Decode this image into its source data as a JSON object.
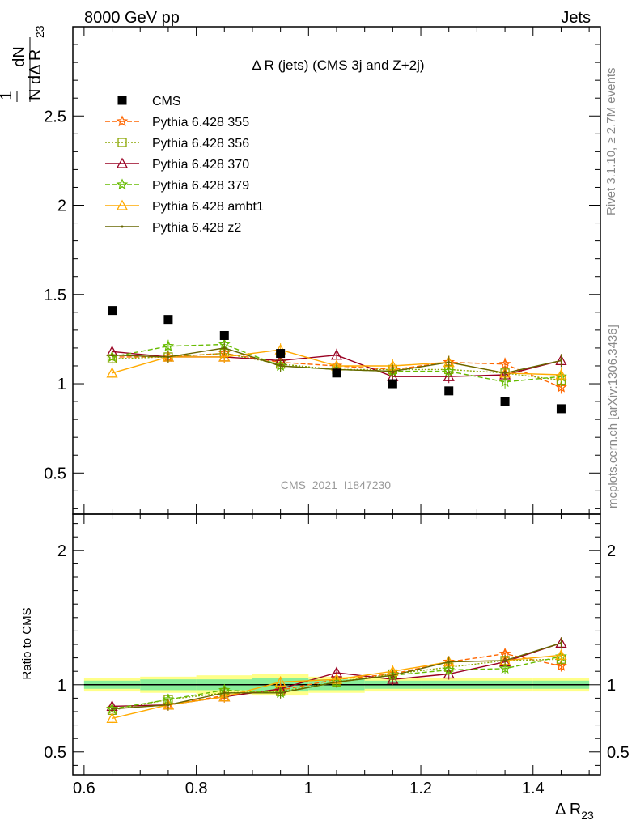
{
  "header": {
    "left": "8000 GeV pp",
    "right": "Jets",
    "title": "Δ R (jets) (CMS 3j and Z+2j)",
    "watermark": "CMS_2021_I1847230",
    "side_top": "Rivet 3.1.10, ≥ 2.7M events",
    "side_bottom": "mcplots.cern.ch [arXiv:1306.3436]"
  },
  "axes": {
    "ylabel_top_num": "1",
    "ylabel_top_dn": "dN",
    "ylabel_top_den": "N dΔ R",
    "ylabel_top_sub": "23",
    "ylabel_bottom": "Ratio to CMS",
    "xlabel": "Δ R",
    "xlabel_sub": "23"
  },
  "chart_data": [
    {
      "type": "line",
      "panel": "main",
      "title": "Δ R (jets) (CMS 3j and Z+2j)",
      "xlim": [
        0.58,
        1.52
      ],
      "ylim": [
        0.27,
        3.0
      ],
      "x_ticks": [
        "0.6",
        "0.8",
        "1",
        "1.2",
        "1.4"
      ],
      "y_ticks": [
        "0.5",
        "1",
        "1.5",
        "2",
        "2.5"
      ],
      "x": [
        0.65,
        0.75,
        0.85,
        0.95,
        1.05,
        1.15,
        1.25,
        1.35,
        1.45
      ],
      "data": {
        "name": "CMS",
        "color": "#000000",
        "values": [
          1.41,
          1.36,
          1.27,
          1.17,
          1.06,
          1.0,
          0.96,
          0.9,
          0.86
        ]
      },
      "series": [
        {
          "name": "Pythia 6.428 355",
          "color": "#ff6600",
          "dash": "6,3",
          "marker": "star",
          "values": [
            1.15,
            1.15,
            1.17,
            1.12,
            1.1,
            1.08,
            1.12,
            1.11,
            0.98
          ]
        },
        {
          "name": "Pythia 6.428 356",
          "color": "#8aa600",
          "dash": "2,2",
          "marker": "square",
          "values": [
            1.14,
            1.15,
            1.17,
            1.11,
            1.08,
            1.08,
            1.08,
            1.06,
            1.02
          ]
        },
        {
          "name": "Pythia 6.428 370",
          "color": "#990022",
          "dash": "",
          "marker": "triangle",
          "values": [
            1.18,
            1.15,
            1.15,
            1.13,
            1.16,
            1.04,
            1.04,
            1.05,
            1.13
          ]
        },
        {
          "name": "Pythia 6.428 379",
          "color": "#66bb00",
          "dash": "6,3",
          "marker": "star",
          "values": [
            1.15,
            1.21,
            1.22,
            1.1,
            1.08,
            1.07,
            1.07,
            1.01,
            1.04
          ]
        },
        {
          "name": "Pythia 6.428 ambt1",
          "color": "#ffaa00",
          "dash": "",
          "marker": "triangle",
          "values": [
            1.06,
            1.15,
            1.15,
            1.19,
            1.1,
            1.1,
            1.12,
            1.06,
            1.05
          ]
        },
        {
          "name": "Pythia 6.428 z2",
          "color": "#666600",
          "dash": "",
          "marker": "dot",
          "values": [
            1.16,
            1.15,
            1.2,
            1.1,
            1.08,
            1.07,
            1.12,
            1.06,
            1.13
          ]
        }
      ]
    },
    {
      "type": "line",
      "panel": "ratio",
      "ylabel": "Ratio to CMS",
      "xlim": [
        0.58,
        1.52
      ],
      "ylim": [
        0.33,
        2.27
      ],
      "y_ticks": [
        "0.5",
        "1",
        "2"
      ],
      "x": [
        0.65,
        0.75,
        0.85,
        0.95,
        1.05,
        1.15,
        1.25,
        1.35,
        1.45
      ],
      "band_inner": [
        0.03,
        0.04,
        0.04,
        0.05,
        0.04,
        0.03,
        0.03,
        0.03,
        0.03
      ],
      "band_outer": [
        0.05,
        0.06,
        0.07,
        0.08,
        0.06,
        0.05,
        0.05,
        0.05,
        0.05
      ],
      "series": [
        {
          "name": "Pythia 6.428 355",
          "values": [
            0.82,
            0.85,
            0.92,
            0.96,
            1.04,
            1.08,
            1.17,
            1.23,
            1.14
          ]
        },
        {
          "name": "Pythia 6.428 356",
          "values": [
            0.81,
            0.89,
            0.94,
            0.95,
            1.02,
            1.08,
            1.13,
            1.18,
            1.19
          ]
        },
        {
          "name": "Pythia 6.428 370",
          "values": [
            0.84,
            0.85,
            0.91,
            0.97,
            1.09,
            1.04,
            1.08,
            1.17,
            1.31
          ]
        },
        {
          "name": "Pythia 6.428 379",
          "values": [
            0.82,
            0.89,
            0.96,
            0.94,
            1.02,
            1.07,
            1.11,
            1.12,
            1.21
          ]
        },
        {
          "name": "Pythia 6.428 ambt1",
          "values": [
            0.75,
            0.85,
            0.91,
            1.02,
            1.04,
            1.1,
            1.17,
            1.18,
            1.22
          ]
        },
        {
          "name": "Pythia 6.428 z2",
          "values": [
            0.82,
            0.85,
            0.94,
            0.94,
            1.02,
            1.07,
            1.17,
            1.18,
            1.31
          ]
        }
      ]
    }
  ]
}
